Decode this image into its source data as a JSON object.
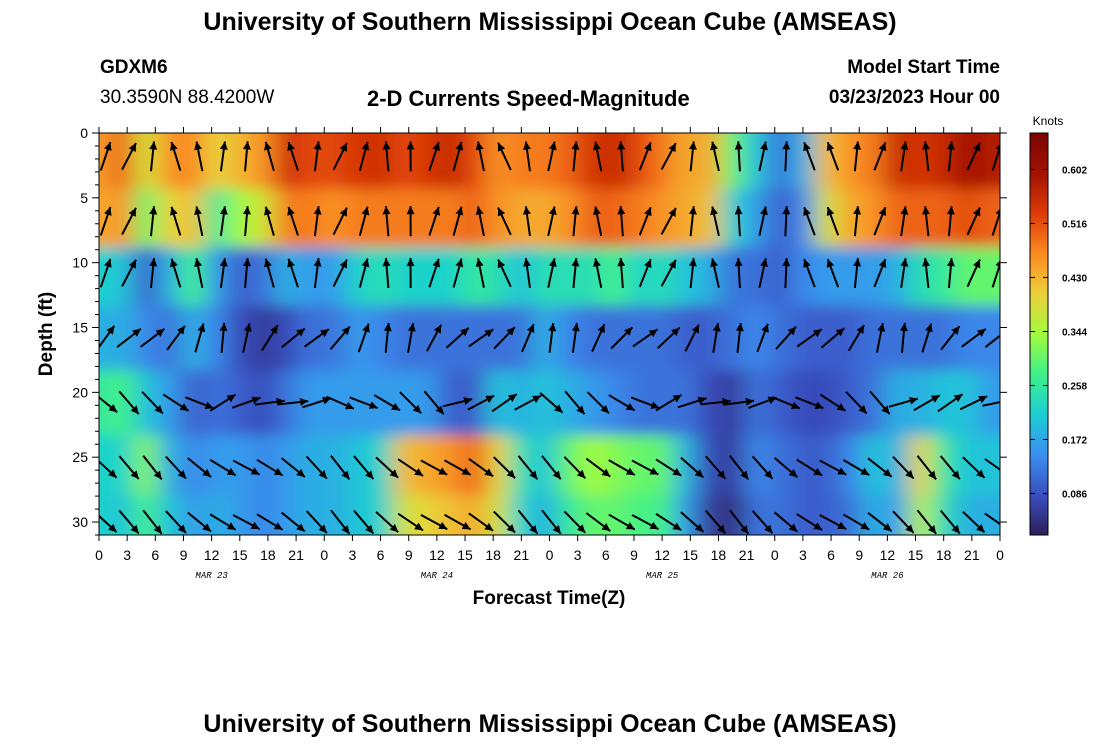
{
  "header": {
    "main_title": "University of Southern Mississippi Ocean Cube (AMSEAS)",
    "station_id": "GDXM6",
    "station_coords": "30.3590N  88.4200W",
    "chart_title": "2-D Currents Speed-Magnitude",
    "start_label": "Model Start Time",
    "start_value": "03/23/2023 Hour 00"
  },
  "footer": {
    "bottom_title": "University of Southern Mississippi Ocean Cube (AMSEAS)"
  },
  "chart_data": {
    "type": "heatmap",
    "title": "2-D Currents Speed-Magnitude",
    "xlabel": "Forecast Time(Z)",
    "ylabel": "Depth (ft)",
    "x_unit": "hours from 03/23/2023 00Z",
    "xlim": [
      0,
      96
    ],
    "ylim": [
      0,
      31
    ],
    "x_ticks": [
      0,
      3,
      6,
      9,
      12,
      15,
      18,
      21,
      24,
      27,
      30,
      33,
      36,
      39,
      42,
      45,
      48,
      51,
      54,
      57,
      60,
      63,
      66,
      69,
      72,
      75,
      78,
      81,
      84,
      87,
      90,
      93,
      96
    ],
    "x_tick_labels": [
      "0",
      "3",
      "6",
      "9",
      "12",
      "15",
      "18",
      "21",
      "0",
      "3",
      "6",
      "9",
      "12",
      "15",
      "18",
      "21",
      "0",
      "3",
      "6",
      "9",
      "12",
      "15",
      "18",
      "21",
      "0",
      "3",
      "6",
      "9",
      "12",
      "15",
      "18",
      "21",
      "0"
    ],
    "y_ticks": [
      0,
      5,
      10,
      15,
      20,
      25,
      30
    ],
    "y_tick_labels": [
      "0",
      "5",
      "10",
      "15",
      "20",
      "25",
      "30"
    ],
    "date_labels": [
      {
        "label": "MAR 23",
        "hour": 12
      },
      {
        "label": "MAR 24",
        "hour": 36
      },
      {
        "label": "MAR 25",
        "hour": 60
      },
      {
        "label": "MAR 26",
        "hour": 84
      }
    ],
    "colorbar": {
      "title": "Knots",
      "ticks": [
        0.602,
        0.516,
        0.43,
        0.344,
        0.258,
        0.172,
        0.086
      ],
      "tick_labels": [
        "0.602",
        "0.516",
        "0.430",
        "0.344",
        "0.258",
        "0.172",
        "0.086"
      ],
      "range": [
        0.02,
        0.66
      ],
      "colors": [
        "#2d1e5a",
        "#3a4fc0",
        "#3b8ff0",
        "#1bcfd4",
        "#3ef08a",
        "#a2fc3c",
        "#ecd13a",
        "#fb8a22",
        "#dd3b07",
        "#a31200",
        "#7a0403"
      ]
    },
    "depth_levels": [
      1.8,
      6.8,
      10.8,
      15.8,
      20.8,
      25.8,
      30.0
    ],
    "speed_grid": [
      [
        0.45,
        0.5,
        0.38,
        0.46,
        0.47,
        0.4,
        0.43,
        0.46,
        0.55,
        0.52,
        0.52,
        0.54,
        0.55,
        0.52,
        0.54,
        0.56,
        0.52,
        0.46,
        0.48,
        0.48,
        0.5,
        0.54,
        0.56,
        0.52,
        0.48,
        0.44,
        0.44,
        0.3,
        0.2,
        0.12,
        0.18,
        0.42,
        0.46,
        0.48,
        0.56,
        0.54,
        0.56,
        0.6,
        0.58
      ],
      [
        0.44,
        0.46,
        0.3,
        0.4,
        0.42,
        0.26,
        0.34,
        0.38,
        0.48,
        0.48,
        0.46,
        0.48,
        0.48,
        0.48,
        0.48,
        0.48,
        0.5,
        0.46,
        0.44,
        0.44,
        0.46,
        0.5,
        0.5,
        0.48,
        0.46,
        0.44,
        0.42,
        0.22,
        0.16,
        0.1,
        0.14,
        0.38,
        0.44,
        0.46,
        0.5,
        0.5,
        0.5,
        0.52,
        0.5
      ],
      [
        0.22,
        0.2,
        0.1,
        0.18,
        0.28,
        0.16,
        0.1,
        0.12,
        0.18,
        0.16,
        0.16,
        0.22,
        0.24,
        0.22,
        0.22,
        0.22,
        0.26,
        0.24,
        0.2,
        0.24,
        0.24,
        0.24,
        0.28,
        0.22,
        0.24,
        0.2,
        0.18,
        0.12,
        0.12,
        0.1,
        0.14,
        0.16,
        0.16,
        0.16,
        0.18,
        0.24,
        0.26,
        0.3,
        0.3
      ],
      [
        0.18,
        0.18,
        0.14,
        0.12,
        0.18,
        0.14,
        0.08,
        0.06,
        0.08,
        0.12,
        0.12,
        0.16,
        0.14,
        0.12,
        0.12,
        0.12,
        0.12,
        0.12,
        0.12,
        0.18,
        0.14,
        0.12,
        0.12,
        0.12,
        0.12,
        0.1,
        0.1,
        0.12,
        0.14,
        0.12,
        0.1,
        0.1,
        0.1,
        0.12,
        0.12,
        0.12,
        0.12,
        0.14,
        0.14
      ],
      [
        0.26,
        0.28,
        0.2,
        0.16,
        0.1,
        0.12,
        0.1,
        0.08,
        0.12,
        0.16,
        0.16,
        0.16,
        0.16,
        0.16,
        0.16,
        0.1,
        0.1,
        0.2,
        0.18,
        0.2,
        0.18,
        0.16,
        0.14,
        0.12,
        0.12,
        0.12,
        0.08,
        0.06,
        0.12,
        0.1,
        0.08,
        0.08,
        0.1,
        0.12,
        0.18,
        0.18,
        0.2,
        0.2,
        0.16
      ],
      [
        0.22,
        0.22,
        0.32,
        0.18,
        0.14,
        0.16,
        0.16,
        0.14,
        0.16,
        0.18,
        0.18,
        0.2,
        0.22,
        0.42,
        0.44,
        0.46,
        0.5,
        0.4,
        0.24,
        0.2,
        0.3,
        0.34,
        0.32,
        0.3,
        0.3,
        0.18,
        0.08,
        0.06,
        0.14,
        0.12,
        0.1,
        0.1,
        0.14,
        0.2,
        0.18,
        0.4,
        0.26,
        0.2,
        0.2
      ],
      [
        0.22,
        0.2,
        0.28,
        0.2,
        0.16,
        0.18,
        0.16,
        0.14,
        0.16,
        0.18,
        0.18,
        0.2,
        0.22,
        0.38,
        0.4,
        0.42,
        0.44,
        0.38,
        0.22,
        0.18,
        0.26,
        0.3,
        0.3,
        0.28,
        0.28,
        0.16,
        0.06,
        0.04,
        0.12,
        0.12,
        0.1,
        0.1,
        0.12,
        0.18,
        0.16,
        0.36,
        0.24,
        0.18,
        0.18
      ]
    ]
  }
}
